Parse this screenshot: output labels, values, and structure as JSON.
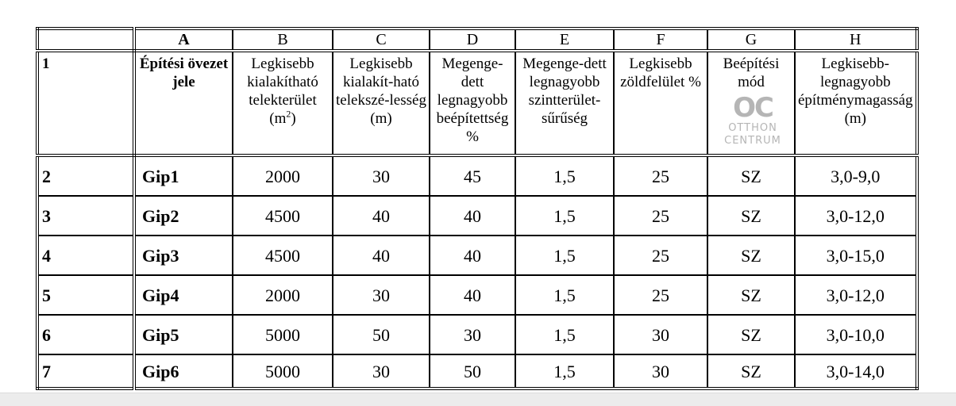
{
  "column_letters": [
    "",
    "A",
    "B",
    "C",
    "D",
    "E",
    "F",
    "G",
    "H"
  ],
  "header_row": {
    "num": "1",
    "cells": [
      "Építési övezet jele",
      "Legkisebb kialakítható telekterület (m",
      "Legkisebb kialakít-ható telekszé-lesség (m)",
      "Megenge-dett legnagyobb beépítettség %",
      "Megenge-dett legnagyobb szintterület-sűrűség",
      "Legkisebb zöldfelület %",
      "Beépítési mód",
      "Legkisebb-legnagyobb építménymagasság (m)"
    ],
    "b_unit_sup": "2",
    "b_unit_close": ")"
  },
  "rows": [
    {
      "num": "2",
      "A": "Gip1",
      "B": "2000",
      "C": "30",
      "D": "45",
      "E": "1,5",
      "F": "25",
      "G": "SZ",
      "H": "3,0-9,0"
    },
    {
      "num": "3",
      "A": "Gip2",
      "B": "4500",
      "C": "40",
      "D": "40",
      "E": "1,5",
      "F": "25",
      "G": "SZ",
      "H": "3,0-12,0"
    },
    {
      "num": "4",
      "A": "Gip3",
      "B": "4500",
      "C": "40",
      "D": "40",
      "E": "1,5",
      "F": "25",
      "G": "SZ",
      "H": "3,0-15,0"
    },
    {
      "num": "5",
      "A": "Gip4",
      "B": "2000",
      "C": "30",
      "D": "40",
      "E": "1,5",
      "F": "25",
      "G": "SZ",
      "H": "3,0-12,0"
    },
    {
      "num": "6",
      "A": "Gip5",
      "B": "5000",
      "C": "50",
      "D": "30",
      "E": "1,5",
      "F": "30",
      "G": "SZ",
      "H": "3,0-10,0"
    },
    {
      "num": "7",
      "A": "Gip6",
      "B": "5000",
      "C": "30",
      "D": "50",
      "E": "1,5",
      "F": "30",
      "G": "SZ",
      "H": "3,0-14,0"
    }
  ],
  "watermark": {
    "mark": "OC",
    "line1": "OTTHON",
    "line2": "CENTRUM"
  }
}
